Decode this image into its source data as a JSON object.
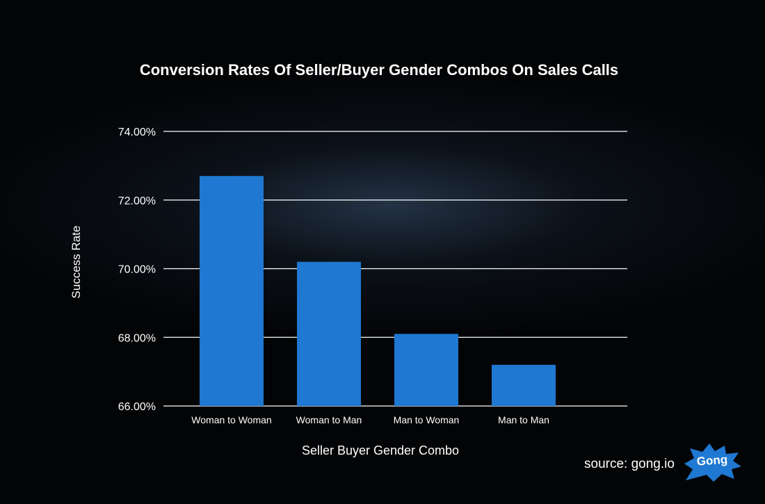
{
  "chart_data": {
    "type": "bar",
    "title": "Conversion Rates Of Seller/Buyer Gender Combos On Sales Calls",
    "xlabel": "Seller Buyer Gender Combo",
    "ylabel": "Success Rate",
    "categories": [
      "Woman to Woman",
      "Woman to Man",
      "Man to Woman",
      "Man to Man"
    ],
    "values": [
      72.7,
      70.2,
      68.1,
      67.2
    ],
    "ylim": [
      66,
      74
    ],
    "yticks": [
      66,
      68,
      70,
      72,
      74
    ],
    "ytick_labels": [
      "66.00%",
      "68.00%",
      "70.00%",
      "72.00%",
      "74.00%"
    ],
    "grid": true,
    "legend": "none",
    "bar_color": "#1f78d1",
    "grid_color": "#ffffff"
  },
  "footer": {
    "source_text": "source: gong.io",
    "logo_text": "Gong",
    "logo_color": "#1f78d1"
  }
}
